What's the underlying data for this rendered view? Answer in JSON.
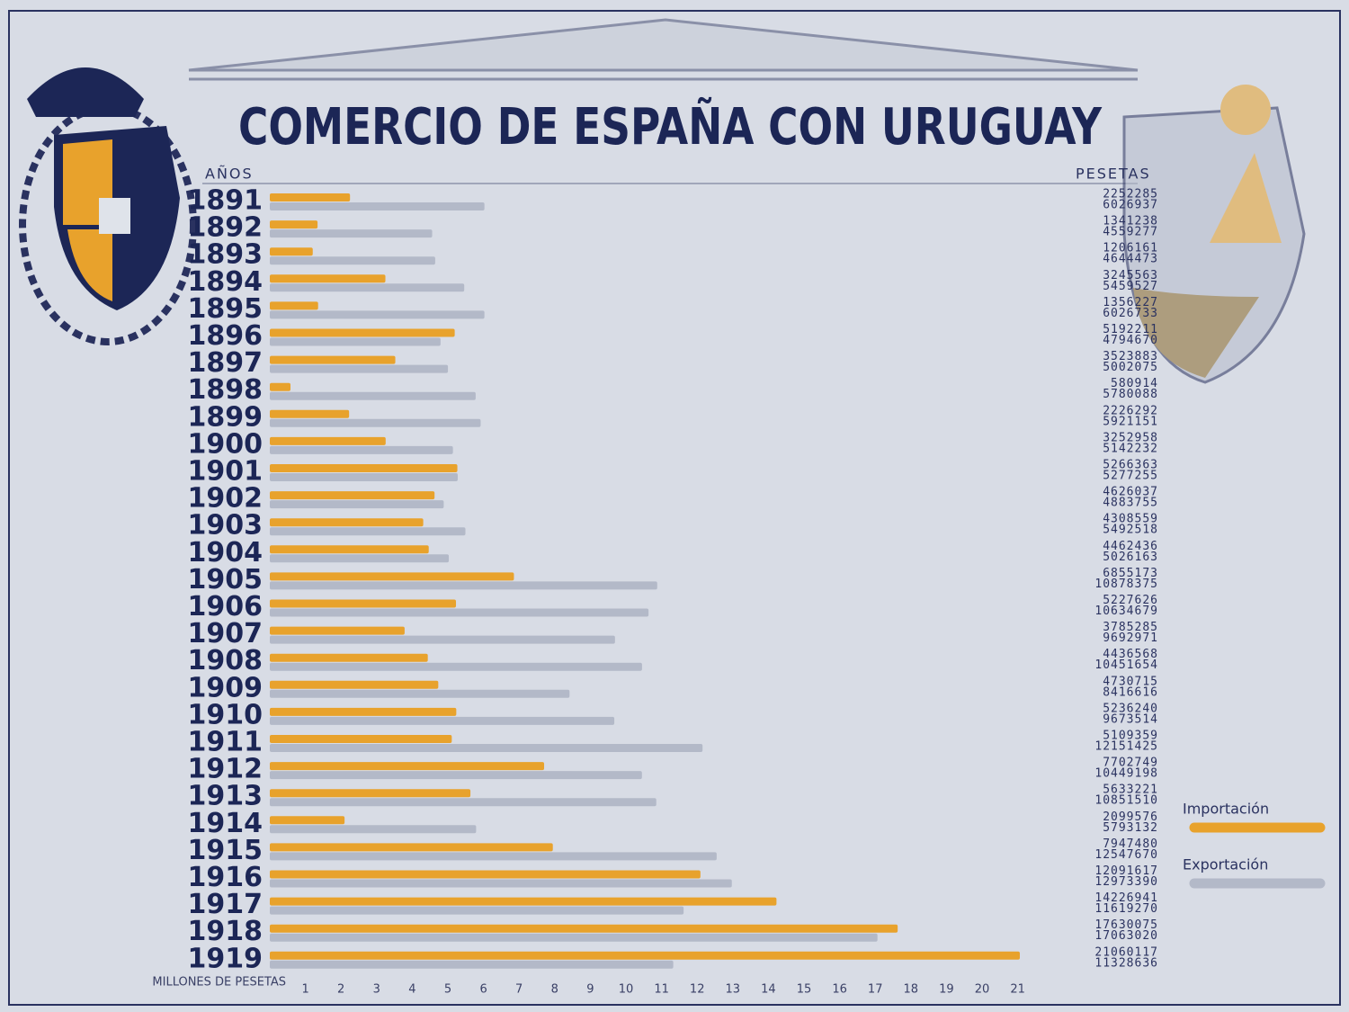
{
  "chart_data": {
    "type": "bar",
    "orientation": "horizontal",
    "title": "COMERCIO DE ESPAÑA CON URUGUAY",
    "y_label": "AÑOS",
    "value_column_label": "PESETAS",
    "x_label": "MILLONES DE PESETAS",
    "categories": [
      "1891",
      "1892",
      "1893",
      "1894",
      "1895",
      "1896",
      "1897",
      "1898",
      "1899",
      "1900",
      "1901",
      "1902",
      "1903",
      "1904",
      "1905",
      "1906",
      "1907",
      "1908",
      "1909",
      "1910",
      "1911",
      "1912",
      "1913",
      "1914",
      "1915",
      "1916",
      "1917",
      "1918",
      "1919"
    ],
    "series": [
      {
        "name": "Importación",
        "color": "#e8a22c",
        "values": [
          2.252285,
          1.341238,
          1.206161,
          3.245563,
          1.356227,
          5.192211,
          3.523883,
          0.580914,
          2.226292,
          3.252958,
          5.266363,
          4.626037,
          4.308559,
          4.462436,
          6.855173,
          5.227626,
          3.785285,
          4.436568,
          4.730715,
          5.23624,
          5.109359,
          7.702749,
          5.633221,
          2.099576,
          7.94748,
          12.091617,
          14.226941,
          17.630075,
          21.060117
        ],
        "value_labels": [
          "2252285",
          "1341238",
          "1206161",
          "3245563",
          "1356227",
          "5192211",
          "3523883",
          "580914",
          "2226292",
          "3252958",
          "5266363",
          "4626037",
          "4308559",
          "4462436",
          "6855173",
          "5227626",
          "3785285",
          "4436568",
          "4730715",
          "5236240",
          "5109359",
          "7702749",
          "5633221",
          "2099576",
          "7947480",
          "12091617",
          "14226941",
          "17630075",
          "21060117"
        ]
      },
      {
        "name": "Exportación",
        "color": "#b3b9c8",
        "values": [
          6.026937,
          4.559277,
          4.644473,
          5.459527,
          6.026733,
          4.79467,
          5.002075,
          5.780088,
          5.921151,
          5.142232,
          5.277255,
          4.883755,
          5.492518,
          5.026163,
          10.878375,
          10.634679,
          9.692971,
          10.451654,
          8.416616,
          9.673514,
          12.151425,
          10.449198,
          10.85151,
          5.793132,
          12.54767,
          12.97339,
          11.61927,
          17.06302,
          11.328636
        ],
        "value_labels": [
          "6026937",
          "4559277",
          "4644473",
          "5459527",
          "6026733",
          "4794670",
          "5002075",
          "5780088",
          "5921151",
          "5142232",
          "5277255",
          "4883755",
          "5492518",
          "5026163",
          "10878375",
          "10634679",
          "9692971",
          "10451654",
          "8416616",
          "9673514",
          "12151425",
          "10449198",
          "10851510",
          "5793132",
          "12547670",
          "12973390",
          "11619270",
          "17063020",
          "11328636"
        ]
      }
    ],
    "xlim": [
      0,
      21.5
    ],
    "xticks": [
      1,
      2,
      3,
      4,
      5,
      6,
      7,
      8,
      9,
      10,
      11,
      12,
      13,
      14,
      15,
      16,
      17,
      18,
      19,
      20,
      21
    ],
    "legend": "lower right"
  }
}
